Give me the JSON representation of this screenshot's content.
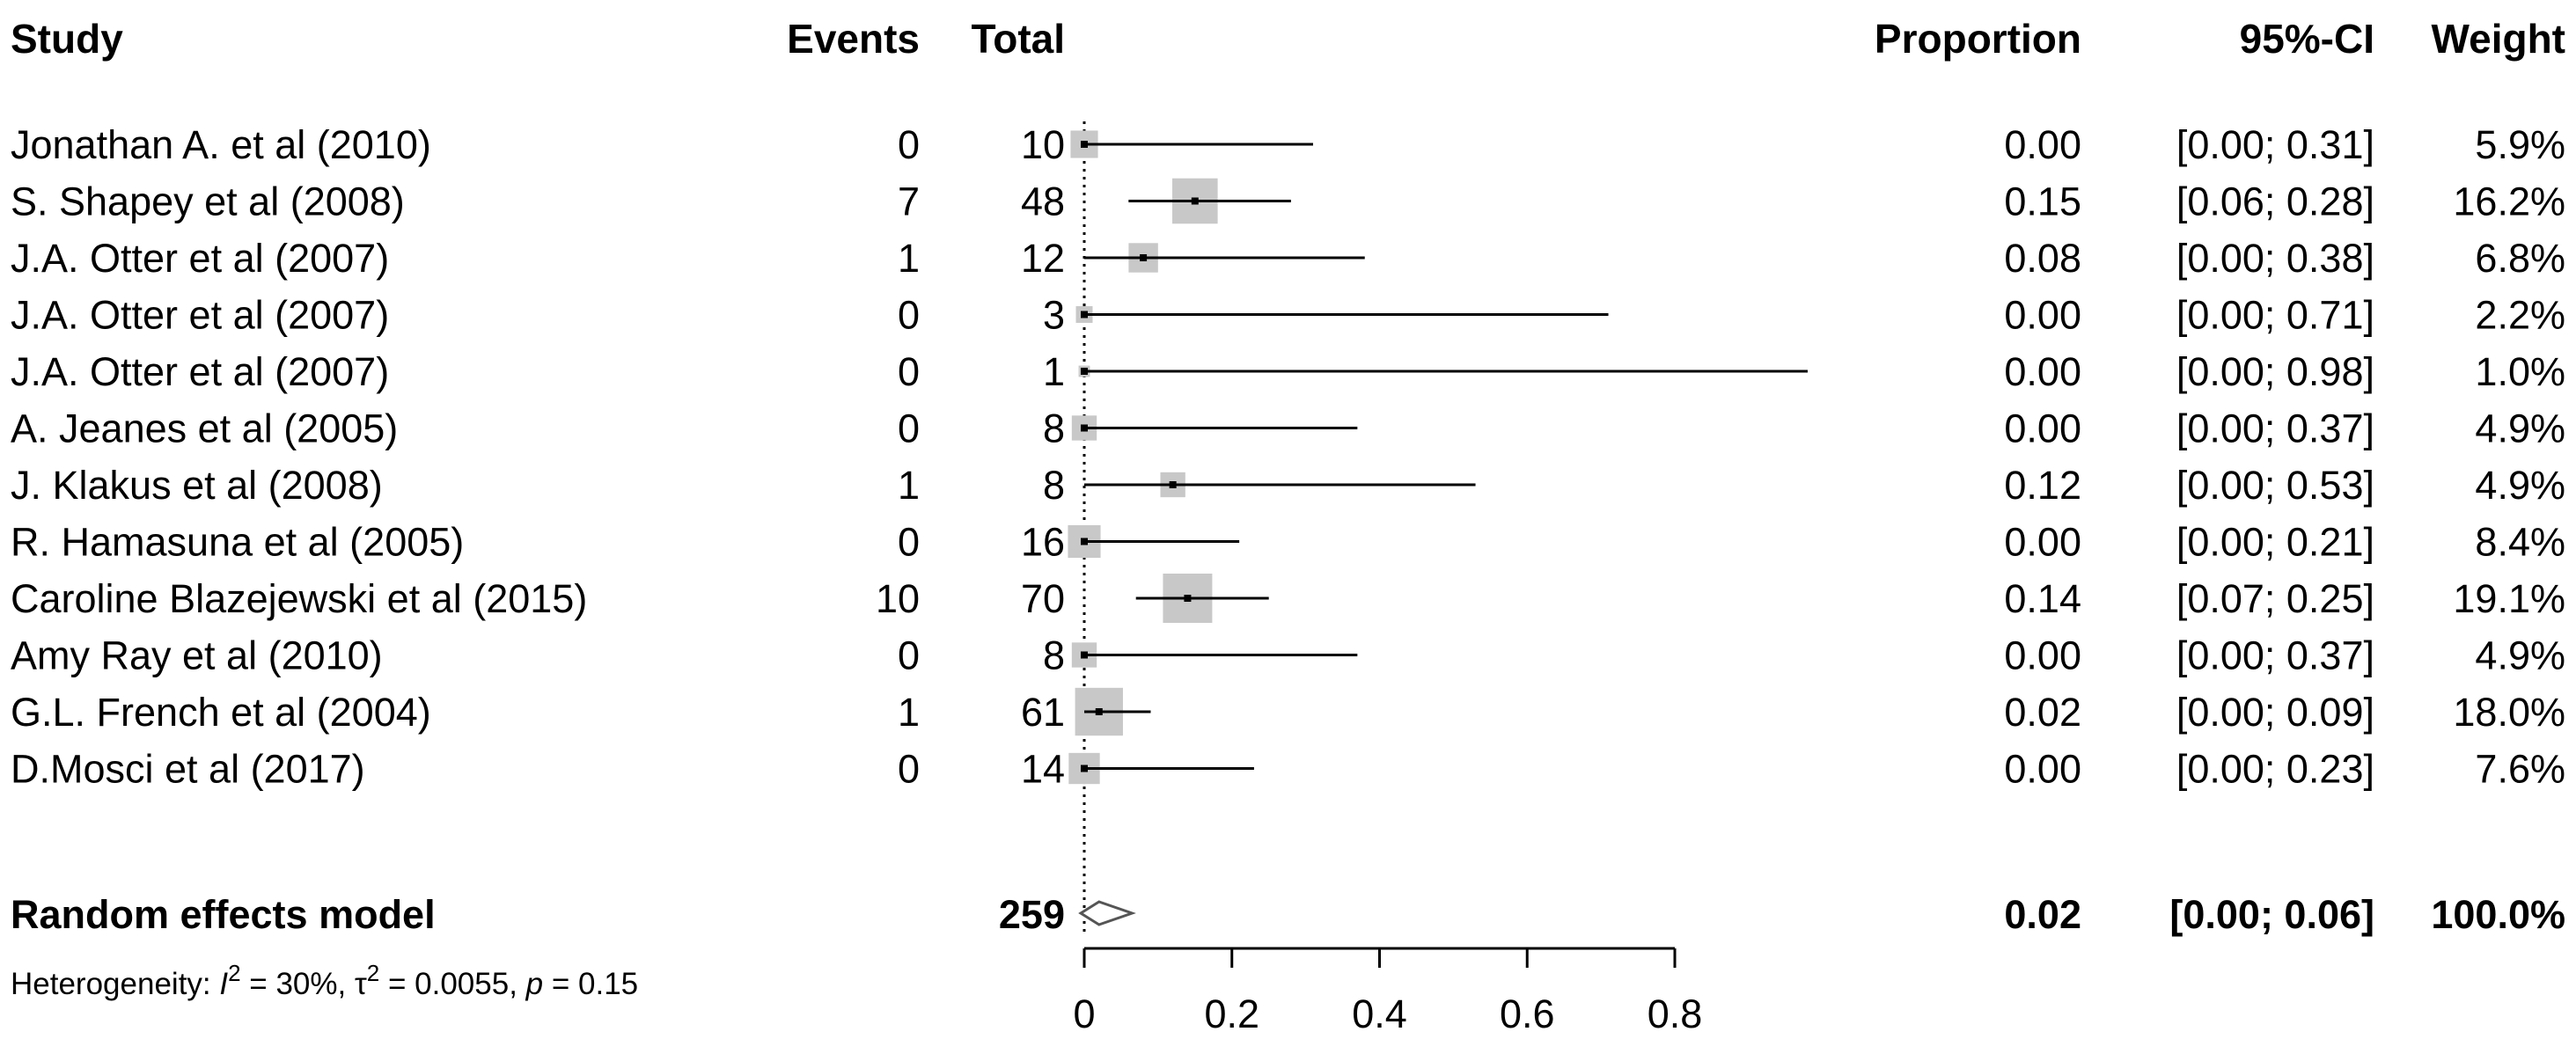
{
  "headers": {
    "study": "Study",
    "events": "Events",
    "total": "Total",
    "proportion": "Proportion",
    "ci": "95%-CI",
    "weight": "Weight"
  },
  "chart_data": {
    "type": "forest",
    "title": "",
    "xlabel": "",
    "ylabel": "",
    "xlim": [
      0,
      0.8
    ],
    "x_ticks": [
      0,
      0.2,
      0.4,
      0.6,
      0.8
    ],
    "x_tick_labels": [
      "0",
      "0.2",
      "0.4",
      "0.6",
      "0.8"
    ],
    "reference_line": 0,
    "studies": [
      {
        "study": "Jonathan A. et al (2010)",
        "events": "0",
        "total": "10",
        "proportion": 0.0,
        "ci_low": 0.0,
        "ci_high": 0.31,
        "weight_pct": 5.9,
        "proportion_text": "0.00",
        "ci_text": "[0.00; 0.31]",
        "weight_text": "5.9%"
      },
      {
        "study": "S. Shapey et al (2008)",
        "events": "7",
        "total": "48",
        "proportion": 0.15,
        "ci_low": 0.06,
        "ci_high": 0.28,
        "weight_pct": 16.2,
        "proportion_text": "0.15",
        "ci_text": "[0.06; 0.28]",
        "weight_text": "16.2%"
      },
      {
        "study": "J.A. Otter et al (2007)",
        "events": "1",
        "total": "12",
        "proportion": 0.08,
        "ci_low": 0.0,
        "ci_high": 0.38,
        "weight_pct": 6.8,
        "proportion_text": "0.08",
        "ci_text": "[0.00; 0.38]",
        "weight_text": "6.8%"
      },
      {
        "study": "J.A. Otter et al (2007)",
        "events": "0",
        "total": "3",
        "proportion": 0.0,
        "ci_low": 0.0,
        "ci_high": 0.71,
        "weight_pct": 2.2,
        "proportion_text": "0.00",
        "ci_text": "[0.00; 0.71]",
        "weight_text": "2.2%"
      },
      {
        "study": "J.A. Otter et al (2007)",
        "events": "0",
        "total": "1",
        "proportion": 0.0,
        "ci_low": 0.0,
        "ci_high": 0.98,
        "weight_pct": 1.0,
        "proportion_text": "0.00",
        "ci_text": "[0.00; 0.98]",
        "weight_text": "1.0%"
      },
      {
        "study": "A. Jeanes et al (2005)",
        "events": "0",
        "total": "8",
        "proportion": 0.0,
        "ci_low": 0.0,
        "ci_high": 0.37,
        "weight_pct": 4.9,
        "proportion_text": "0.00",
        "ci_text": "[0.00; 0.37]",
        "weight_text": "4.9%"
      },
      {
        "study": "J. Klakus et al (2008)",
        "events": "1",
        "total": "8",
        "proportion": 0.12,
        "ci_low": 0.0,
        "ci_high": 0.53,
        "weight_pct": 4.9,
        "proportion_text": "0.12",
        "ci_text": "[0.00; 0.53]",
        "weight_text": "4.9%"
      },
      {
        "study": "R. Hamasuna et al (2005)",
        "events": "0",
        "total": "16",
        "proportion": 0.0,
        "ci_low": 0.0,
        "ci_high": 0.21,
        "weight_pct": 8.4,
        "proportion_text": "0.00",
        "ci_text": "[0.00; 0.21]",
        "weight_text": "8.4%"
      },
      {
        "study": "Caroline Blazejewski et al (2015)",
        "events": "10",
        "total": "70",
        "proportion": 0.14,
        "ci_low": 0.07,
        "ci_high": 0.25,
        "weight_pct": 19.1,
        "proportion_text": "0.14",
        "ci_text": "[0.07; 0.25]",
        "weight_text": "19.1%"
      },
      {
        "study": "Amy Ray et al (2010)",
        "events": "0",
        "total": "8",
        "proportion": 0.0,
        "ci_low": 0.0,
        "ci_high": 0.37,
        "weight_pct": 4.9,
        "proportion_text": "0.00",
        "ci_text": "[0.00; 0.37]",
        "weight_text": "4.9%"
      },
      {
        "study": "G.L. French et al (2004)",
        "events": "1",
        "total": "61",
        "proportion": 0.02,
        "ci_low": 0.0,
        "ci_high": 0.09,
        "weight_pct": 18.0,
        "proportion_text": "0.02",
        "ci_text": "[0.00; 0.09]",
        "weight_text": "18.0%"
      },
      {
        "study": "D.Mosci et al (2017)",
        "events": "0",
        "total": "14",
        "proportion": 0.0,
        "ci_low": 0.0,
        "ci_high": 0.23,
        "weight_pct": 7.6,
        "proportion_text": "0.00",
        "ci_text": "[0.00; 0.23]",
        "weight_text": "7.6%"
      }
    ],
    "summary": {
      "label": "Random effects model",
      "total": "259",
      "proportion": 0.02,
      "ci_low": 0.0,
      "ci_high": 0.06,
      "proportion_text": "0.02",
      "ci_text": "[0.00; 0.06]",
      "weight_text": "100.0%"
    },
    "heterogeneity": {
      "prefix": "Heterogeneity: ",
      "i2_symbol": "I",
      "i2_value": " = 30%, ",
      "tau2_symbol": "τ",
      "tau2_value": " = 0.0055, ",
      "p_symbol": "p",
      "p_value": " = 0.15"
    },
    "colors": {
      "box": "#c8c8c8",
      "line": "#000000",
      "diamond_fill": "#ffffff",
      "diamond_stroke": "#555555"
    }
  }
}
